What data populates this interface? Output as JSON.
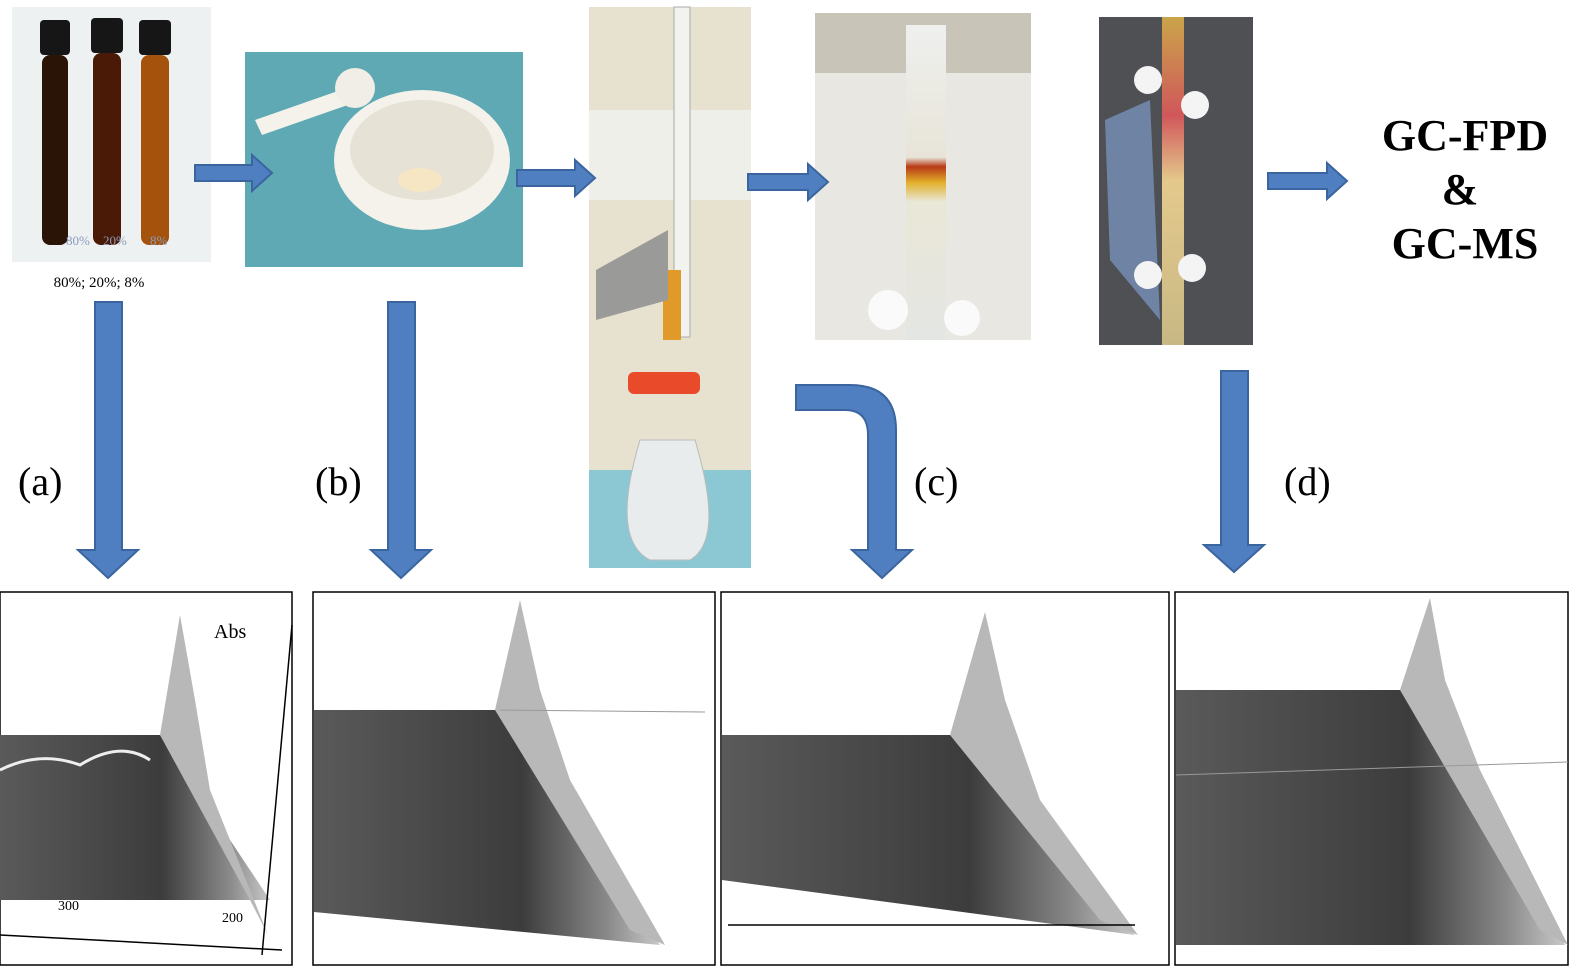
{
  "steps": {
    "vials_caption": "80%; 20%; 8%",
    "vial_labels": [
      "80%",
      "20%",
      "8%"
    ],
    "result": [
      "GC-FPD",
      "&",
      "GC-MS"
    ]
  },
  "panels": [
    {
      "label": "(a)",
      "axis_title": "Abs",
      "ticks": [
        "300",
        "200"
      ]
    },
    {
      "label": "(b)"
    },
    {
      "label": "(c)"
    },
    {
      "label": "(d)"
    }
  ]
}
